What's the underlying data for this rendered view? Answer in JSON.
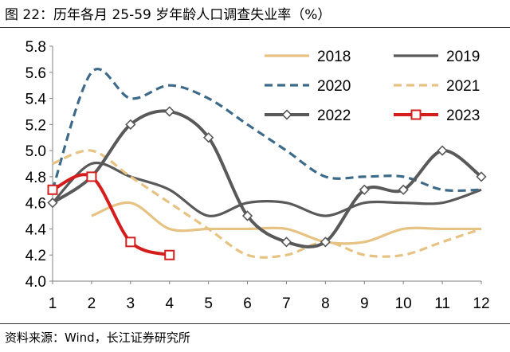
{
  "title": "图 22：历年各月 25-59 岁年龄人口调查失业率（%）",
  "source": "资料来源：Wind，长江证券研究所",
  "chart_data": {
    "type": "line",
    "x": [
      1,
      2,
      3,
      4,
      5,
      6,
      7,
      8,
      9,
      10,
      11,
      12
    ],
    "ylim": [
      4.0,
      5.8
    ],
    "yticks": [
      "4.0",
      "4.2",
      "4.4",
      "4.6",
      "4.8",
      "5.0",
      "5.2",
      "5.4",
      "5.6",
      "5.8"
    ],
    "xticks": [
      "1",
      "2",
      "3",
      "4",
      "5",
      "6",
      "7",
      "8",
      "9",
      "10",
      "11",
      "12"
    ],
    "grid": false,
    "legend": "top-right",
    "series": [
      {
        "name": "2018",
        "color": "#E6C283",
        "style": "solid",
        "marker": "none",
        "values": [
          null,
          4.5,
          4.6,
          4.4,
          4.4,
          4.4,
          4.4,
          4.3,
          4.3,
          4.4,
          4.4,
          4.4
        ]
      },
      {
        "name": "2019",
        "color": "#595959",
        "style": "solid",
        "marker": "none",
        "values": [
          4.6,
          4.9,
          4.8,
          4.7,
          4.5,
          4.6,
          4.6,
          4.5,
          4.6,
          4.6,
          4.6,
          4.7
        ]
      },
      {
        "name": "2020",
        "color": "#3E6A8A",
        "style": "dashed",
        "marker": "none",
        "values": [
          4.7,
          5.6,
          5.4,
          5.5,
          5.4,
          5.2,
          5.0,
          4.8,
          4.8,
          4.8,
          4.7,
          4.7
        ]
      },
      {
        "name": "2021",
        "color": "#E6C283",
        "style": "dashed",
        "marker": "none",
        "values": [
          4.9,
          5.0,
          4.8,
          4.6,
          4.4,
          4.2,
          4.2,
          4.3,
          4.2,
          4.2,
          4.3,
          4.4
        ]
      },
      {
        "name": "2022",
        "color": "#595959",
        "style": "solid",
        "marker": "diamond",
        "values": [
          4.6,
          4.8,
          5.2,
          5.3,
          5.1,
          4.5,
          4.3,
          4.3,
          4.7,
          4.7,
          5.0,
          4.8
        ]
      },
      {
        "name": "2023",
        "color": "#D41E1E",
        "style": "solid",
        "marker": "square",
        "values": [
          4.7,
          4.8,
          4.3,
          4.2,
          null,
          null,
          null,
          null,
          null,
          null,
          null,
          null
        ]
      }
    ]
  }
}
